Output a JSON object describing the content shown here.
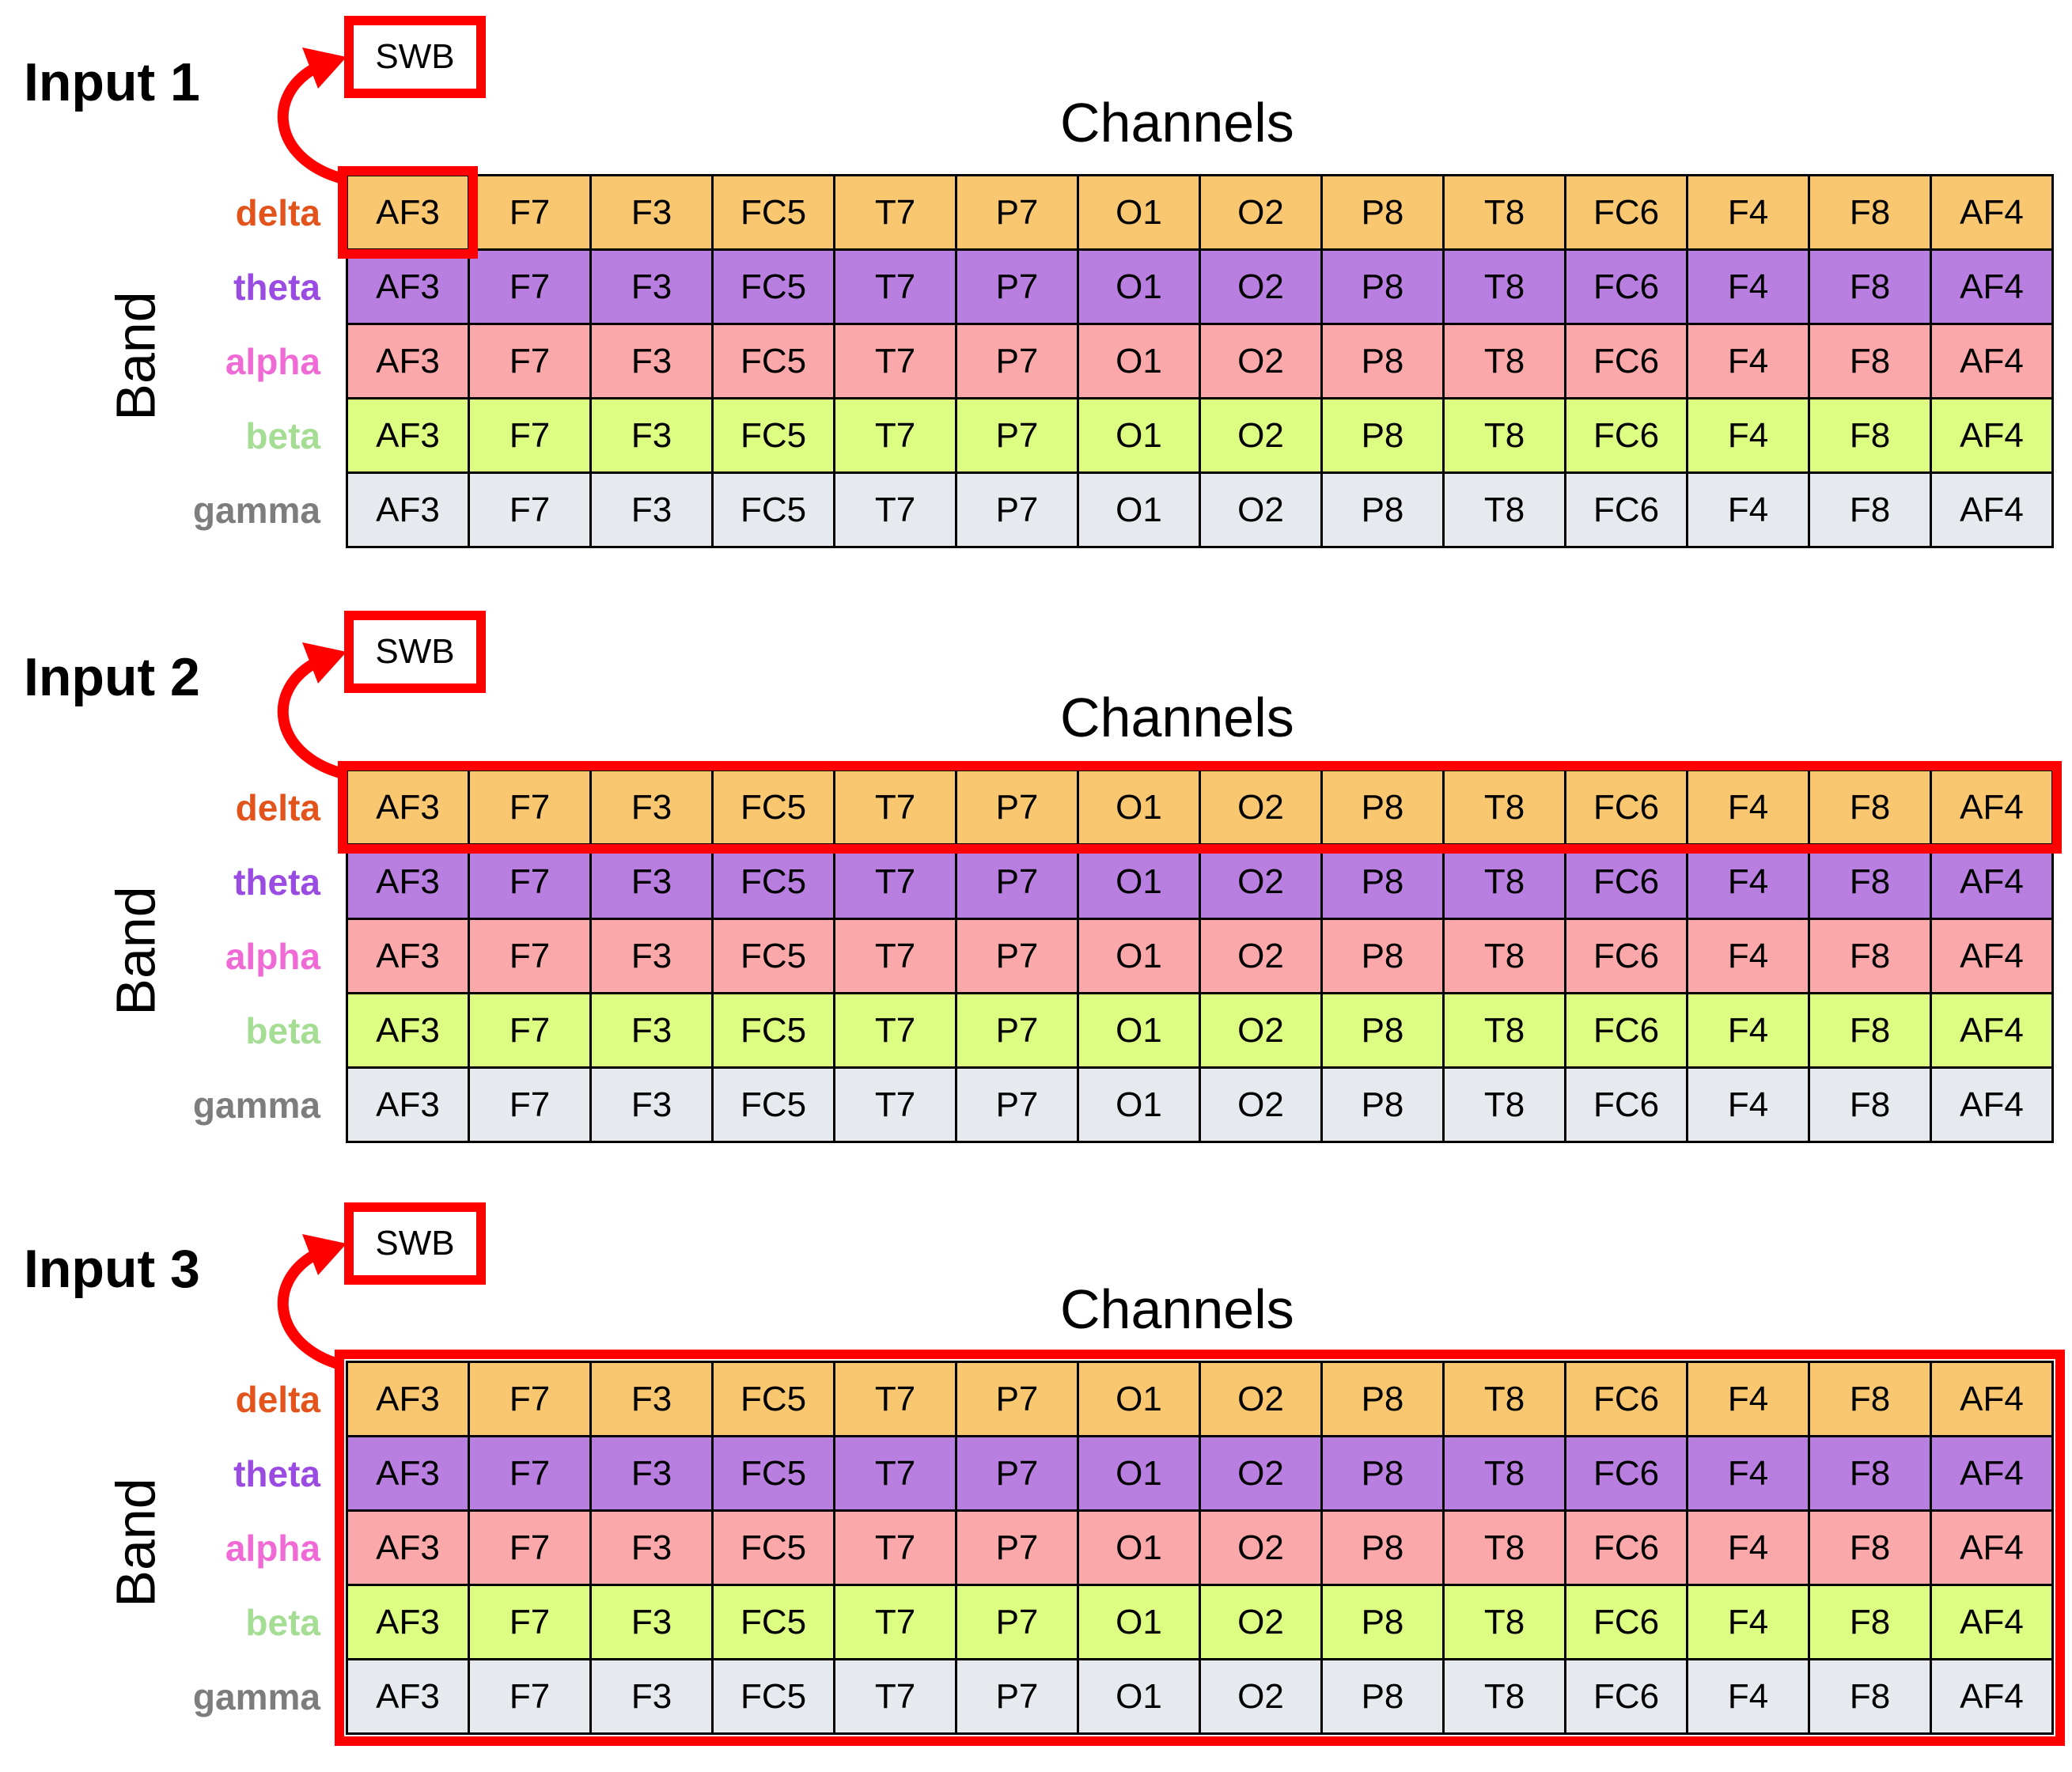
{
  "colors": {
    "highlight": "#ff0000",
    "bands": {
      "delta": {
        "label": "#e2541b",
        "fill": "#f9c76f"
      },
      "theta": {
        "label": "#9a4be2",
        "fill": "#b87ee0"
      },
      "alpha": {
        "label": "#f06ad6",
        "fill": "#fba8aa"
      },
      "beta": {
        "label": "#a5dd94",
        "fill": "#dcfd82"
      },
      "gamma": {
        "label": "#7d7d7d",
        "fill": "#e6e9ee"
      }
    }
  },
  "axis": {
    "channels": "Channels",
    "band": "Band"
  },
  "swb_label": "SWB",
  "bands": [
    "delta",
    "theta",
    "alpha",
    "beta",
    "gamma"
  ],
  "channels": [
    "AF3",
    "F7",
    "F3",
    "FC5",
    "T7",
    "P7",
    "O1",
    "O2",
    "P8",
    "T8",
    "FC6",
    "F4",
    "F8",
    "AF4"
  ],
  "inputs": [
    {
      "title": "Input 1",
      "highlight": "cell"
    },
    {
      "title": "Input 2",
      "highlight": "row"
    },
    {
      "title": "Input 3",
      "highlight": "all"
    }
  ]
}
